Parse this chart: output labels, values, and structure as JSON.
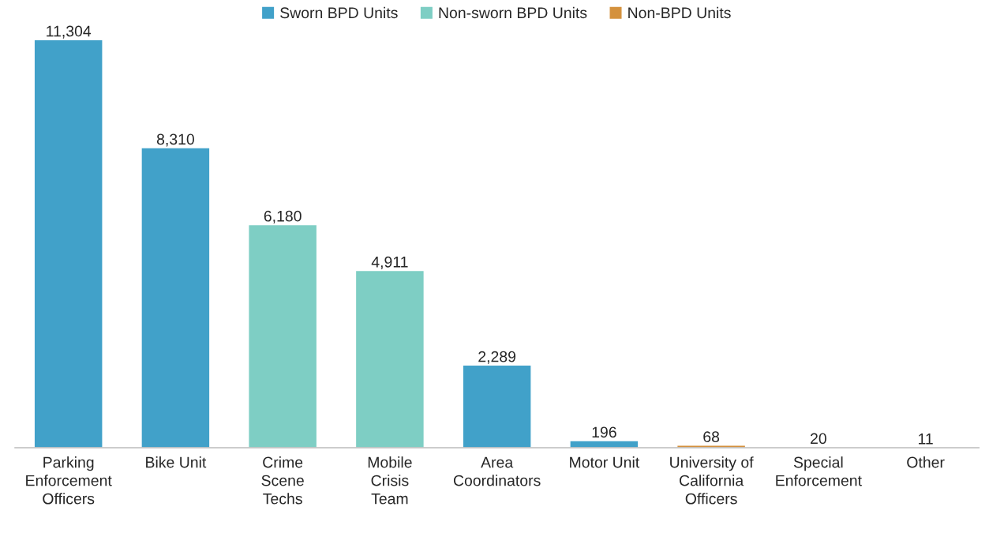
{
  "chart_data": {
    "type": "bar",
    "categories": [
      "Parking\nEnforcement\nOfficers",
      "Bike Unit",
      "Crime\nScene\nTechs",
      "Mobile\nCrisis\nTeam",
      "Area\nCoordinators",
      "Motor Unit",
      "University of\nCalifornia\nOfficers",
      "Special\nEnforcement",
      "Other"
    ],
    "series": [
      {
        "name": "Sworn BPD Units",
        "color": "#41a1c9",
        "values": [
          11304,
          8310,
          null,
          null,
          2289,
          196,
          null,
          20,
          null
        ],
        "value_labels": [
          "11,304",
          "8,310",
          null,
          null,
          "2,289",
          "196",
          null,
          "20",
          null
        ]
      },
      {
        "name": "Non-sworn BPD Units",
        "color": "#7ecec4",
        "values": [
          null,
          null,
          6180,
          4911,
          null,
          null,
          null,
          null,
          null
        ],
        "value_labels": [
          null,
          null,
          "6,180",
          "4,911",
          null,
          null,
          null,
          null,
          null
        ]
      },
      {
        "name": "Non-BPD Units",
        "color": "#d4913d",
        "values": [
          null,
          null,
          null,
          null,
          null,
          null,
          68,
          null,
          11
        ],
        "value_labels": [
          null,
          null,
          null,
          null,
          null,
          null,
          "68",
          null,
          "11"
        ]
      }
    ],
    "legend": "top",
    "grid": false
  }
}
